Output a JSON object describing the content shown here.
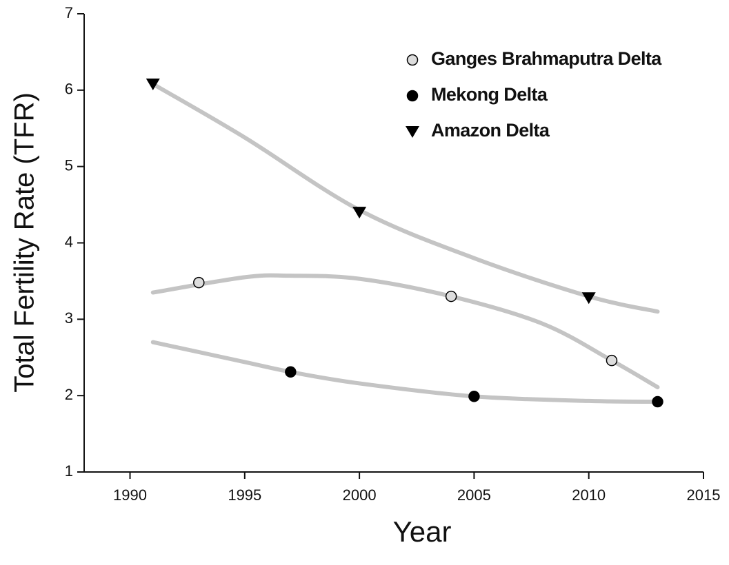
{
  "chart_data": {
    "type": "scatter",
    "x_label": "Year",
    "y_label": "Total Fertility Rate (TFR)",
    "xlim": [
      1988,
      2015
    ],
    "ylim": [
      1,
      7
    ],
    "xticks": [
      1990,
      1995,
      2000,
      2005,
      2010,
      2015
    ],
    "yticks": [
      1,
      2,
      3,
      4,
      5,
      6,
      7
    ],
    "legend": "upper right",
    "series": [
      {
        "name": "Ganges Brahmaputra Delta",
        "marker": "open-circle",
        "color": "#000000",
        "x": [
          1993,
          2004,
          2011
        ],
        "values": [
          3.48,
          3.3,
          2.46
        ],
        "trend": {
          "color": "#c4c4c4",
          "x": [
            1991,
            1995,
            1997,
            2000,
            2004,
            2008,
            2011,
            2013
          ],
          "values": [
            3.35,
            3.55,
            3.57,
            3.53,
            3.3,
            2.94,
            2.46,
            2.11
          ]
        }
      },
      {
        "name": "Mekong Delta",
        "marker": "filled-circle",
        "color": "#000000",
        "x": [
          1997,
          2005,
          2013
        ],
        "values": [
          2.31,
          1.99,
          1.92
        ],
        "trend": {
          "color": "#c4c4c4",
          "x": [
            1991,
            1995,
            1997,
            2000,
            2005,
            2010,
            2013
          ],
          "values": [
            2.7,
            2.44,
            2.31,
            2.16,
            1.99,
            1.93,
            1.92
          ]
        }
      },
      {
        "name": "Amazon Delta",
        "marker": "triangle-down",
        "color": "#000000",
        "x": [
          1991,
          2000,
          2010
        ],
        "values": [
          6.08,
          4.4,
          3.28
        ],
        "trend": {
          "color": "#c4c4c4",
          "x": [
            1991,
            1995,
            2000,
            2005,
            2010,
            2013
          ],
          "values": [
            6.08,
            5.38,
            4.43,
            3.8,
            3.3,
            3.1
          ]
        }
      }
    ]
  }
}
